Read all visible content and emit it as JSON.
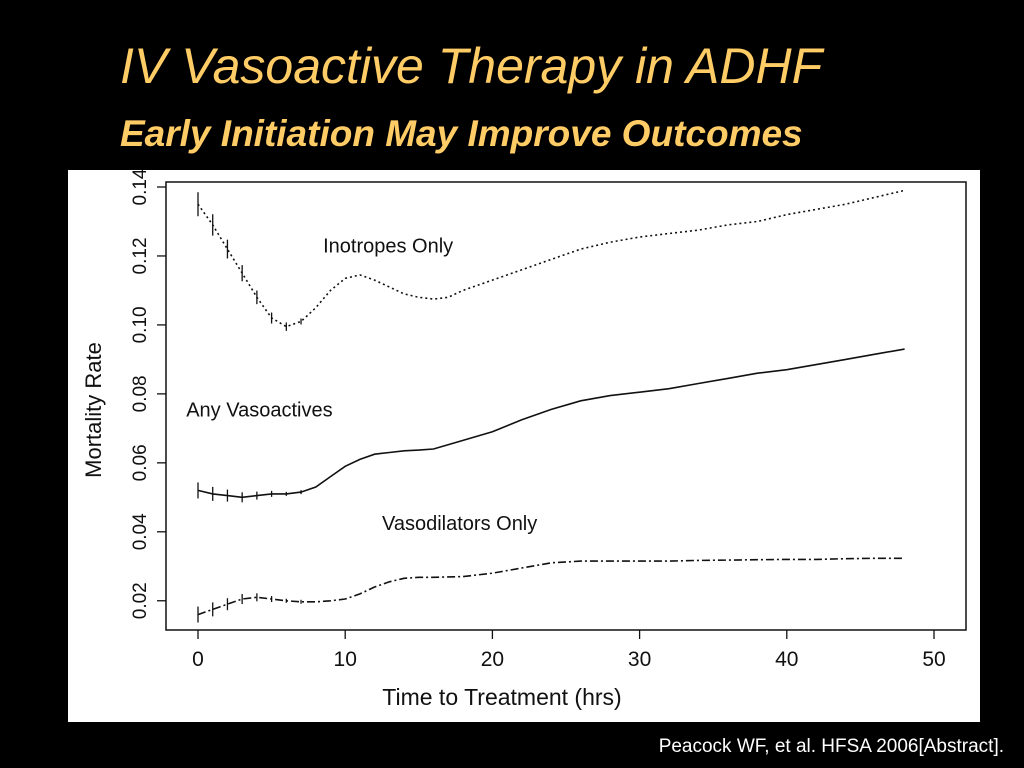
{
  "slide": {
    "title": "IV Vasoactive Therapy in ADHF",
    "subtitle": "Early Initiation May Improve Outcomes",
    "citation": "Peacock WF, et al. HFSA 2006[Abstract]."
  },
  "colors": {
    "background": "#000000",
    "title": "#ffcc66",
    "citation": "#ffffff",
    "panel": "#ffffff",
    "ink": "#111111"
  },
  "chart_data": {
    "type": "line",
    "xlabel": "Time to Treatment (hrs)",
    "ylabel": "Mortality Rate",
    "xlim": [
      0,
      50
    ],
    "ylim": [
      0.015,
      0.14
    ],
    "xticks": [
      0,
      10,
      20,
      30,
      40,
      50
    ],
    "yticks": [
      0.02,
      0.04,
      0.06,
      0.08,
      0.1,
      0.12,
      0.14
    ],
    "ytick_labels": [
      "0.02",
      "0.04",
      "0.06",
      "0.08",
      "0.10",
      "0.12",
      "0.14"
    ],
    "grid": false,
    "legend": "none (series labeled directly on plot)",
    "series": [
      {
        "name": "Inotropes Only",
        "style": "dotted",
        "x": [
          0,
          1,
          2,
          3,
          4,
          5,
          6,
          7,
          8,
          9,
          10,
          11,
          12,
          13,
          14,
          15,
          16,
          17,
          18,
          20,
          22,
          24,
          26,
          28,
          30,
          32,
          34,
          36,
          38,
          40,
          42,
          44,
          46,
          48
        ],
        "y": [
          0.135,
          0.129,
          0.122,
          0.115,
          0.108,
          0.102,
          0.0995,
          0.101,
          0.105,
          0.11,
          0.1135,
          0.1145,
          0.113,
          0.111,
          0.109,
          0.108,
          0.1075,
          0.108,
          0.11,
          0.113,
          0.116,
          0.119,
          0.122,
          0.124,
          0.1255,
          0.1265,
          0.1275,
          0.129,
          0.13,
          0.132,
          0.1335,
          0.135,
          0.137,
          0.139
        ]
      },
      {
        "name": "Any Vasoactives",
        "style": "solid",
        "x": [
          0,
          1,
          2,
          3,
          4,
          5,
          6,
          7,
          8,
          9,
          10,
          11,
          12,
          13,
          14,
          15,
          16,
          18,
          20,
          22,
          24,
          26,
          28,
          30,
          32,
          34,
          36,
          38,
          40,
          42,
          44,
          46,
          48
        ],
        "y": [
          0.052,
          0.051,
          0.0505,
          0.05,
          0.0505,
          0.051,
          0.051,
          0.0515,
          0.053,
          0.056,
          0.059,
          0.061,
          0.0625,
          0.063,
          0.0635,
          0.0637,
          0.064,
          0.0665,
          0.069,
          0.0725,
          0.0755,
          0.078,
          0.0795,
          0.0805,
          0.0815,
          0.083,
          0.0845,
          0.086,
          0.087,
          0.0885,
          0.09,
          0.0915,
          0.093
        ]
      },
      {
        "name": "Vasodilators Only",
        "style": "dash-dot",
        "x": [
          0,
          1,
          2,
          3,
          4,
          5,
          6,
          7,
          8,
          9,
          10,
          11,
          12,
          13,
          14,
          15,
          16,
          18,
          20,
          22,
          24,
          26,
          28,
          30,
          32,
          34,
          36,
          38,
          40,
          42,
          44,
          46,
          48
        ],
        "y": [
          0.016,
          0.0175,
          0.019,
          0.0205,
          0.021,
          0.0205,
          0.02,
          0.0197,
          0.0197,
          0.02,
          0.0205,
          0.022,
          0.024,
          0.0255,
          0.0265,
          0.0268,
          0.0268,
          0.027,
          0.028,
          0.0295,
          0.031,
          0.0315,
          0.0315,
          0.0315,
          0.0315,
          0.0317,
          0.0318,
          0.0319,
          0.032,
          0.032,
          0.0322,
          0.0323,
          0.0323
        ]
      }
    ],
    "annotations": [
      {
        "text": "Inotropes Only",
        "x": 8.5,
        "y": 0.121
      },
      {
        "text": "Any Vasoactives",
        "x": -0.8,
        "y": 0.0735
      },
      {
        "text": "Vasodilators Only",
        "x": 12.5,
        "y": 0.0405
      }
    ]
  }
}
